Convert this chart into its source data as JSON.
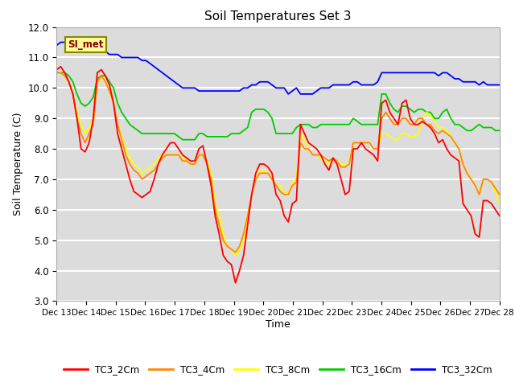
{
  "title": "Soil Temperatures Set 3",
  "xlabel": "Time",
  "ylabel": "Soil Temperature (C)",
  "ylim": [
    3.0,
    12.0
  ],
  "yticks": [
    3.0,
    4.0,
    5.0,
    6.0,
    7.0,
    8.0,
    9.0,
    10.0,
    11.0,
    12.0
  ],
  "bg_color": "#dcdcdc",
  "annotation_text": "SI_met",
  "annotation_bg": "#ffff99",
  "annotation_border": "#888800",
  "colors": {
    "TC3_2Cm": "#ff0000",
    "TC3_4Cm": "#ff8800",
    "TC3_8Cm": "#ffff00",
    "TC3_16Cm": "#00cc00",
    "TC3_32Cm": "#0000ff"
  },
  "TC3_2Cm": [
    10.6,
    10.7,
    10.5,
    10.2,
    9.8,
    9.0,
    8.0,
    7.9,
    8.2,
    9.0,
    10.5,
    10.6,
    10.4,
    10.1,
    9.5,
    8.5,
    8.0,
    7.5,
    7.0,
    6.6,
    6.5,
    6.4,
    6.5,
    6.6,
    7.0,
    7.5,
    7.8,
    8.0,
    8.2,
    8.2,
    8.0,
    7.8,
    7.7,
    7.6,
    7.6,
    8.0,
    8.1,
    7.5,
    6.8,
    5.8,
    5.2,
    4.5,
    4.3,
    4.2,
    3.6,
    4.0,
    4.5,
    5.5,
    6.5,
    7.2,
    7.5,
    7.5,
    7.4,
    7.2,
    6.5,
    6.3,
    5.8,
    5.6,
    6.2,
    6.3,
    8.8,
    8.5,
    8.2,
    8.1,
    8.0,
    7.8,
    7.5,
    7.3,
    7.7,
    7.5,
    7.0,
    6.5,
    6.6,
    8.0,
    8.0,
    8.2,
    8.0,
    7.9,
    7.8,
    7.6,
    9.5,
    9.6,
    9.2,
    9.0,
    8.8,
    9.5,
    9.6,
    9.0,
    8.8,
    8.8,
    8.9,
    8.8,
    8.7,
    8.5,
    8.2,
    8.3,
    8.0,
    7.8,
    7.7,
    7.6,
    6.2,
    6.0,
    5.8,
    5.2,
    5.1,
    6.3,
    6.3,
    6.2,
    6.0,
    5.8
  ],
  "TC3_4Cm": [
    10.5,
    10.5,
    10.4,
    10.2,
    9.8,
    9.0,
    8.5,
    8.2,
    8.5,
    8.8,
    10.2,
    10.4,
    10.2,
    9.9,
    9.5,
    8.8,
    8.3,
    7.8,
    7.5,
    7.3,
    7.2,
    7.0,
    7.1,
    7.2,
    7.3,
    7.5,
    7.7,
    7.8,
    7.8,
    7.8,
    7.8,
    7.6,
    7.6,
    7.5,
    7.5,
    7.8,
    7.8,
    7.5,
    7.0,
    6.0,
    5.5,
    5.0,
    4.8,
    4.7,
    4.6,
    4.8,
    5.2,
    5.8,
    6.5,
    7.0,
    7.2,
    7.2,
    7.2,
    7.0,
    6.8,
    6.6,
    6.5,
    6.5,
    6.8,
    6.9,
    8.2,
    8.0,
    8.0,
    7.8,
    7.8,
    7.8,
    7.7,
    7.6,
    7.7,
    7.6,
    7.4,
    7.4,
    7.5,
    8.2,
    8.2,
    8.2,
    8.2,
    8.2,
    8.0,
    8.0,
    9.0,
    9.2,
    9.0,
    8.8,
    8.8,
    9.0,
    9.0,
    8.8,
    8.8,
    9.0,
    9.0,
    8.8,
    8.8,
    8.6,
    8.5,
    8.6,
    8.5,
    8.4,
    8.2,
    8.0,
    7.5,
    7.2,
    7.0,
    6.8,
    6.5,
    7.0,
    7.0,
    6.9,
    6.7,
    6.5
  ],
  "TC3_8Cm": [
    10.5,
    10.5,
    10.4,
    10.2,
    9.8,
    9.2,
    8.8,
    8.5,
    8.7,
    9.0,
    10.2,
    10.3,
    10.2,
    9.9,
    9.5,
    8.8,
    8.4,
    8.0,
    7.7,
    7.5,
    7.4,
    7.2,
    7.3,
    7.4,
    7.5,
    7.7,
    7.8,
    7.8,
    7.8,
    7.8,
    7.8,
    7.7,
    7.6,
    7.5,
    7.5,
    7.8,
    7.8,
    7.6,
    7.2,
    6.2,
    5.8,
    5.2,
    4.8,
    4.7,
    4.5,
    4.7,
    5.0,
    5.8,
    6.5,
    7.0,
    7.3,
    7.3,
    7.2,
    7.0,
    6.8,
    6.8,
    6.6,
    6.5,
    6.9,
    7.0,
    8.5,
    8.3,
    8.0,
    7.8,
    7.8,
    7.7,
    7.6,
    7.5,
    7.7,
    7.6,
    7.5,
    7.5,
    7.5,
    8.2,
    8.2,
    8.2,
    8.2,
    8.2,
    8.0,
    8.0,
    8.5,
    8.5,
    8.4,
    8.3,
    8.3,
    8.5,
    8.5,
    8.4,
    8.4,
    8.5,
    9.0,
    9.2,
    9.1,
    8.9,
    8.7,
    8.7,
    8.6,
    8.4,
    8.2,
    8.0,
    7.5,
    7.2,
    7.0,
    6.8,
    6.5,
    7.0,
    7.0,
    6.9,
    6.6,
    6.2
  ],
  "TC3_16Cm": [
    10.5,
    10.5,
    10.5,
    10.4,
    10.2,
    9.8,
    9.5,
    9.4,
    9.5,
    9.7,
    10.3,
    10.4,
    10.4,
    10.2,
    10.0,
    9.5,
    9.2,
    9.0,
    8.8,
    8.7,
    8.6,
    8.5,
    8.5,
    8.5,
    8.5,
    8.5,
    8.5,
    8.5,
    8.5,
    8.5,
    8.4,
    8.3,
    8.3,
    8.3,
    8.3,
    8.5,
    8.5,
    8.4,
    8.4,
    8.4,
    8.4,
    8.4,
    8.4,
    8.5,
    8.5,
    8.5,
    8.6,
    8.7,
    9.2,
    9.3,
    9.3,
    9.3,
    9.2,
    9.0,
    8.5,
    8.5,
    8.5,
    8.5,
    8.5,
    8.7,
    8.8,
    8.8,
    8.8,
    8.7,
    8.7,
    8.8,
    8.8,
    8.8,
    8.8,
    8.8,
    8.8,
    8.8,
    8.8,
    9.0,
    8.9,
    8.8,
    8.8,
    8.8,
    8.8,
    8.8,
    9.8,
    9.8,
    9.5,
    9.3,
    9.2,
    9.4,
    9.4,
    9.3,
    9.2,
    9.3,
    9.3,
    9.2,
    9.2,
    9.0,
    9.0,
    9.2,
    9.3,
    9.0,
    8.8,
    8.8,
    8.7,
    8.6,
    8.6,
    8.7,
    8.8,
    8.7,
    8.7,
    8.7,
    8.6,
    8.6
  ],
  "TC3_32Cm": [
    11.4,
    11.5,
    11.5,
    11.5,
    11.4,
    11.4,
    11.3,
    11.3,
    11.2,
    11.2,
    11.2,
    11.2,
    11.2,
    11.1,
    11.1,
    11.1,
    11.0,
    11.0,
    11.0,
    11.0,
    11.0,
    10.9,
    10.9,
    10.8,
    10.7,
    10.6,
    10.5,
    10.4,
    10.3,
    10.2,
    10.1,
    10.0,
    10.0,
    10.0,
    10.0,
    9.9,
    9.9,
    9.9,
    9.9,
    9.9,
    9.9,
    9.9,
    9.9,
    9.9,
    9.9,
    9.9,
    10.0,
    10.0,
    10.1,
    10.1,
    10.2,
    10.2,
    10.2,
    10.1,
    10.0,
    10.0,
    10.0,
    9.8,
    9.9,
    10.0,
    9.8,
    9.8,
    9.8,
    9.8,
    9.9,
    10.0,
    10.0,
    10.0,
    10.1,
    10.1,
    10.1,
    10.1,
    10.1,
    10.2,
    10.2,
    10.1,
    10.1,
    10.1,
    10.1,
    10.2,
    10.5,
    10.5,
    10.5,
    10.5,
    10.5,
    10.5,
    10.5,
    10.5,
    10.5,
    10.5,
    10.5,
    10.5,
    10.5,
    10.5,
    10.4,
    10.5,
    10.5,
    10.4,
    10.3,
    10.3,
    10.2,
    10.2,
    10.2,
    10.2,
    10.1,
    10.2,
    10.1,
    10.1,
    10.1,
    10.1
  ],
  "n_points": 110,
  "xtick_labels": [
    "Dec 13",
    "Dec 14",
    "Dec 15",
    "Dec 16",
    "Dec 17",
    "Dec 18",
    "Dec 19",
    "Dec 20",
    "Dec 21",
    "Dec 22",
    "Dec 23",
    "Dec 24",
    "Dec 25",
    "Dec 26",
    "Dec 27",
    "Dec 28"
  ]
}
